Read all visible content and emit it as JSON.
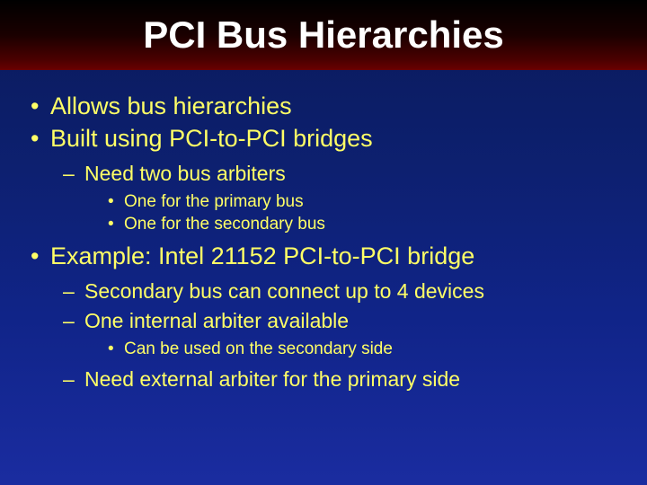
{
  "slide": {
    "title": "PCI Bus Hierarchies",
    "background_gradient": [
      "#0a1a5a",
      "#0d2070",
      "#102488",
      "#1a2ca0"
    ],
    "titlebar_gradient": [
      "#000000",
      "#1a0000",
      "#4a0000",
      "#6a0000"
    ],
    "text_color": "#ffff66",
    "title_color": "#ffffff",
    "title_fontsize": 42,
    "lvl1_fontsize": 27,
    "lvl2_fontsize": 23,
    "lvl3_fontsize": 19,
    "bullets": {
      "b1": "Allows bus hierarchies",
      "b2": "Built using PCI-to-PCI bridges",
      "b2_1": "Need two bus arbiters",
      "b2_1_1": "One for the primary bus",
      "b2_1_2": "One for the secondary bus",
      "b3": "Example: Intel 21152 PCI-to-PCI bridge",
      "b3_1": "Secondary bus can connect up to 4 devices",
      "b3_2": "One internal arbiter available",
      "b3_2_1": "Can be used on the secondary side",
      "b3_3": "Need external arbiter for the primary side"
    }
  }
}
